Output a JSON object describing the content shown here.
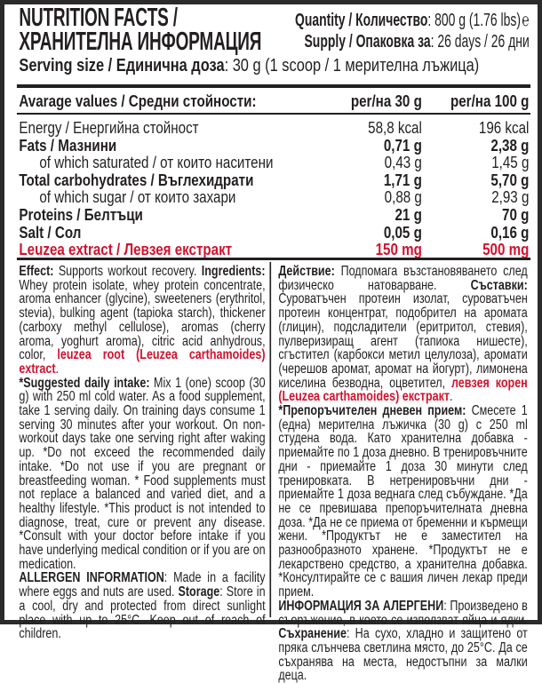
{
  "header": {
    "title_line1": "NUTRITION FACTS /",
    "title_line2": "ХРАНИТЕЛНА ИНФОРМАЦИЯ",
    "quantity_label": "Quantity / Количество",
    "quantity_value": ": 800 g (1.76 lbs)",
    "estimated_sign": "℮",
    "supply_label": "Supply / Опаковка за",
    "supply_value": ": 26 days / 26 дни",
    "serving_label": "Serving size / Единична доза",
    "serving_value": ": 30 g (1 scoop / 1 мерителна лъжица)"
  },
  "table": {
    "headers": [
      "Avarage values / Средни стойности:",
      "per/на 30 g",
      "per/на 100 g"
    ],
    "rows": [
      {
        "name": "Energy / Енергийна стойност",
        "v30": "58,8 kcal",
        "v100": "196 kcal",
        "bold": false,
        "indent": false
      },
      {
        "name": "Fats / Мазнини",
        "v30": "0,71 g",
        "v100": "2,38 g",
        "bold": true,
        "indent": false
      },
      {
        "name": "of which saturated  / от които наситени",
        "v30": "0,43 g",
        "v100": "1,45 g",
        "bold": false,
        "indent": true
      },
      {
        "name": "Total carbohydrates / Въглехидрати",
        "v30": "1,71 g",
        "v100": "5,70 g",
        "bold": true,
        "indent": false
      },
      {
        "name": "of which sugar / от които захари",
        "v30": "0,88 g",
        "v100": "2,93 g",
        "bold": false,
        "indent": true
      },
      {
        "name": "Proteins / Белтъци",
        "v30": "21 g",
        "v100": "70 g",
        "bold": true,
        "indent": false
      },
      {
        "name": "Salt / Сол",
        "v30": "0,05 g",
        "v100": "0,16 g",
        "bold": true,
        "indent": false
      },
      {
        "name": "Leuzea extract / Левзея екстракт",
        "v30": "150 mg",
        "v100": "500 mg",
        "bold": true,
        "indent": false,
        "highlight": true
      }
    ]
  },
  "colors": {
    "text": "#231f20",
    "highlight": "#d2122e",
    "frame": "#2b2b2b"
  },
  "english": [
    [
      {
        "t": "Effect:",
        "s": "b"
      },
      {
        "t": " Supports workout recovery. "
      },
      {
        "t": "Ingredients:",
        "s": "b"
      },
      {
        "t": " Whey protein isolate, whey protein concentrate, aroma enhancer (glycine), sweeteners (erythritol, stevia), bulking agent (tapioka starch), thickener (carboxy methyl cellulose), aromas (cherry aroma, yoghurt aroma), citric acid anhydrous, color, "
      },
      {
        "t": "leuzea root (Leuzea carthamoides) extract",
        "s": "r"
      },
      {
        "t": "."
      }
    ],
    [
      {
        "t": "*Suggested daily intake:",
        "s": "b"
      },
      {
        "t": " Mix 1 (one) scoop (30 g) with 250 ml cold water. As a food supplement, take 1 serving daily. On training days consume 1 serving 30 minutes after your workout. On non-workout days take one serving right after waking up. *Do not exceed the recommended daily intake. *Do not use if you are pregnant or breastfeeding woman. * Food supplements must not replace a balanced and varied diet, and a healthy lifestyle. *This product is not intended to diagnose, treat, cure or prevent any disease. *Consult with your doctor before intake if you have underlying medical condition or if you are on medication."
      }
    ],
    [
      {
        "t": "ALLERGEN INFORMATION",
        "s": "b"
      },
      {
        "t": ": Made in a facility where eggs and nuts are used. "
      },
      {
        "t": "Storage",
        "s": "b"
      },
      {
        "t": ": Store in a cool, dry and protected from direct sunlight place with up to 25°C. Keep out of reach of children."
      }
    ]
  ],
  "bulgarian": [
    [
      {
        "t": "Действие:",
        "s": "b"
      },
      {
        "t": " Подпомага възстановяването след физическо натоварване. "
      },
      {
        "t": "Съставки:",
        "s": "b"
      },
      {
        "t": " Суроватъчен протеин изолат, суроватъчен протеин концентрат, подобрител на аромата (глицин), подсладители (еритритол, стевия), пулверизиращ агент (тапиока нишесте), сгъстител (карбокси метил целулоза), аромати (черешов аромат, аромат на йогурт), лимонена киселина безводна, оцветител, "
      },
      {
        "t": "левзея корен (Leuzea carthamoides) екстракт",
        "s": "r"
      },
      {
        "t": "."
      }
    ],
    [
      {
        "t": "*Препоръчителен дневен прием:",
        "s": "b"
      },
      {
        "t": " Смесете 1 (една) мерителна лъжичка (30 g) с 250 ml студена вода. Като хранителна добавка - приемайте по 1 доза дневно. В тренировъчните дни - приемайте 1 доза 30 минути след тренировката. В нетренировъчни дни - приемайте 1 доза веднага след събуждане. *Да не се превишава препоръчителната дневна доза. *Да не се приема от бременни и кърмещи жени. *Продуктът не е заместител на разнообразното хранене. *Продуктът не е лекарствено средство, а хранителна добавка. *Консултирайте се с вашия личен лекар преди прием."
      }
    ],
    [
      {
        "t": "ИНФОРМАЦИЯ ЗА АЛЕРГЕНИ",
        "s": "b"
      },
      {
        "t": ": Произведено в съоръжение, в което се използват яйца и ядки. "
      },
      {
        "t": "Съхранение",
        "s": "b"
      },
      {
        "t": ": На сухо, хладно и защитено от пряка слънчева светлина място, до 25°C. Да се съхранява на места, недостъпни за малки деца."
      }
    ]
  ]
}
